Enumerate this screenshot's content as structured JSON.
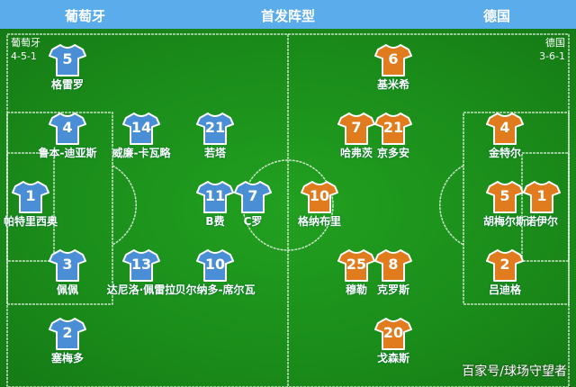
{
  "header": {
    "home": "葡萄牙",
    "title": "首发阵型",
    "away": "德国"
  },
  "colors": {
    "header": "#5aacea",
    "home_jersey": "#4a8fd6",
    "away_jersey": "#e07b1e"
  },
  "home": {
    "name": "葡萄牙",
    "formation": "4-5-1",
    "players": [
      {
        "number": "5",
        "name": "格雷罗"
      },
      {
        "number": "4",
        "name": "鲁本-迪亚斯"
      },
      {
        "number": "14",
        "name": "威廉-卡瓦略"
      },
      {
        "number": "21",
        "name": "若塔"
      },
      {
        "number": "1",
        "name": "帕特里西奥"
      },
      {
        "number": "11",
        "name": "B费"
      },
      {
        "number": "7",
        "name": "C罗"
      },
      {
        "number": "3",
        "name": "佩佩"
      },
      {
        "number": "13",
        "name": "达尼洛·佩雷拉"
      },
      {
        "number": "10",
        "name": "贝尔纳多-席尔瓦"
      },
      {
        "number": "2",
        "name": "塞梅多"
      }
    ]
  },
  "away": {
    "name": "德国",
    "formation": "3-6-1",
    "players": [
      {
        "number": "6",
        "name": "基米希"
      },
      {
        "number": "7",
        "name": "哈弗茨"
      },
      {
        "number": "21",
        "name": "京多安"
      },
      {
        "number": "4",
        "name": "金特尔"
      },
      {
        "number": "10",
        "name": "格纳布里"
      },
      {
        "number": "5",
        "name": "胡梅尔斯"
      },
      {
        "number": "1",
        "name": "诺伊尔"
      },
      {
        "number": "25",
        "name": "穆勒"
      },
      {
        "number": "8",
        "name": "克罗斯"
      },
      {
        "number": "2",
        "name": "吕迪格"
      },
      {
        "number": "20",
        "name": "戈森斯"
      }
    ]
  },
  "watermark": "百家号/球场守望者"
}
